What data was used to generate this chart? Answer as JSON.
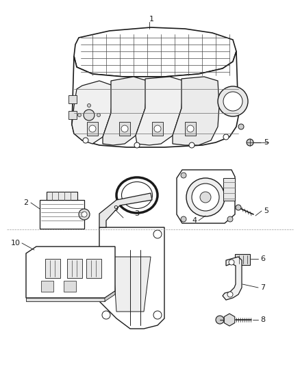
{
  "background_color": "#ffffff",
  "line_color": "#1a1a1a",
  "label_color": "#1a1a1a",
  "fig_width": 4.38,
  "fig_height": 5.33,
  "dpi": 100
}
